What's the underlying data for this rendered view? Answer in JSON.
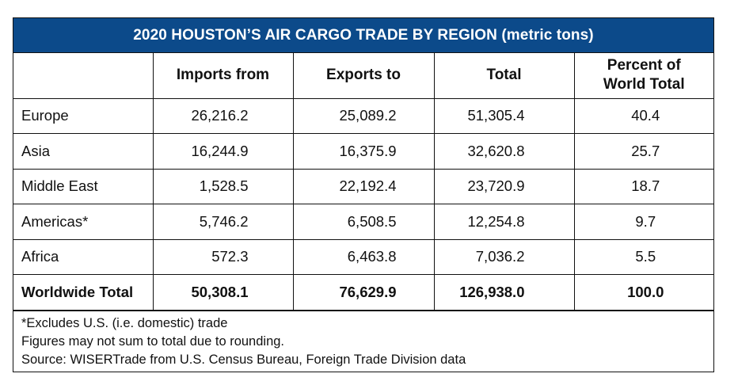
{
  "table": {
    "title": "2020 HOUSTON’S AIR CARGO TRADE BY REGION (metric tons)",
    "header_color": "#0c4a8a",
    "columns": [
      "",
      "Imports from",
      "Exports to",
      "Total",
      "Percent of World Total"
    ],
    "column_header_lines": {
      "percent_line1": "Percent of",
      "percent_line2": "World Total"
    },
    "rows": [
      {
        "region": "Europe",
        "imports": "26,216.2",
        "exports": "25,089.2",
        "total": "51,305.4",
        "percent": "40.4"
      },
      {
        "region": "Asia",
        "imports": "16,244.9",
        "exports": "16,375.9",
        "total": "32,620.8",
        "percent": "25.7"
      },
      {
        "region": "Middle East",
        "imports": "1,528.5",
        "exports": "22,192.4",
        "total": "23,720.9",
        "percent": "18.7"
      },
      {
        "region": "Americas*",
        "imports": "5,746.2",
        "exports": "6,508.5",
        "total": "12,254.8",
        "percent": "9.7"
      },
      {
        "region": "Africa",
        "imports": "572.3",
        "exports": "6,463.8",
        "total": "7,036.2",
        "percent": "5.5"
      }
    ],
    "total_row": {
      "region": "Worldwide Total",
      "imports": "50,308.1",
      "exports": "76,629.9",
      "total": "126,938.0",
      "percent": "100.0"
    },
    "footnotes": [
      "*Excludes U.S. (i.e. domestic) trade",
      "Figures may not sum to total due to rounding.",
      "Source:  WISERTrade from U.S. Census Bureau, Foreign Trade Division data"
    ]
  }
}
